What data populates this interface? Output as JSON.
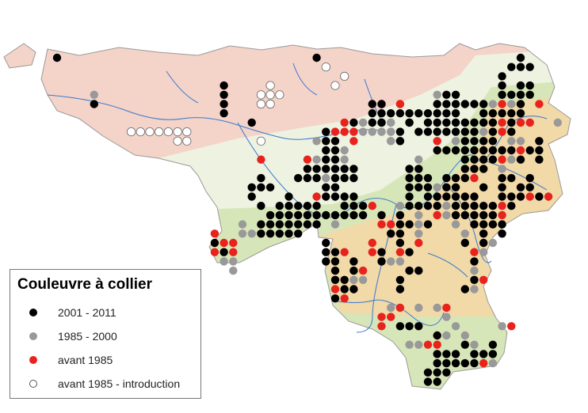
{
  "legend": {
    "title": "Couleuvre à collier",
    "items": [
      {
        "label": "2001 - 2011",
        "color": "#000000",
        "key": "b"
      },
      {
        "label": "1985 - 2000",
        "color": "#999999",
        "key": "g"
      },
      {
        "label": "avant 1985",
        "color": "#e8221c",
        "key": "r"
      },
      {
        "label": "avant 1985 - introduction",
        "color": "#ffffff",
        "key": "w"
      }
    ]
  },
  "map_colors": {
    "north_zone": "#f4d3c8",
    "loam_zone": "#eef2e0",
    "condroz_zone": "#d7e6b8",
    "ardenne_zone": "#f1d9a8",
    "rivers": "#3a78d0",
    "border": "#9a9a9a"
  }
}
